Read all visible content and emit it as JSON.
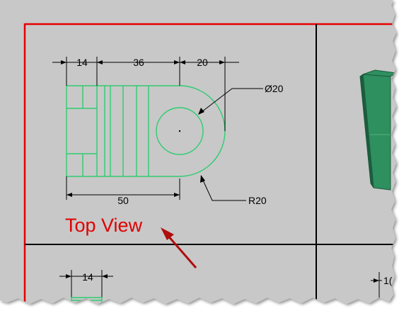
{
  "colors": {
    "viewport_background": "#c8c8c8",
    "sheet_border": "#e60000",
    "geometry": "#2ecc71",
    "dimension": "#000000",
    "callout": "#e00000",
    "arrow": "#b01010",
    "model_fill": "#2f8f5f",
    "model_shade": "#1d5c3c"
  },
  "top_view": {
    "dimensions": {
      "width_left": "14",
      "width_middle": "36",
      "width_right": "20",
      "hole_diameter": "Ø20",
      "overall_length": "50",
      "end_radius": "R20"
    }
  },
  "bottom_view": {
    "dimensions": {
      "width_left": "14",
      "partial_right": "1("
    }
  },
  "callout": {
    "label": "Top View"
  },
  "icons": {
    "arrow": "arrow-icon"
  }
}
